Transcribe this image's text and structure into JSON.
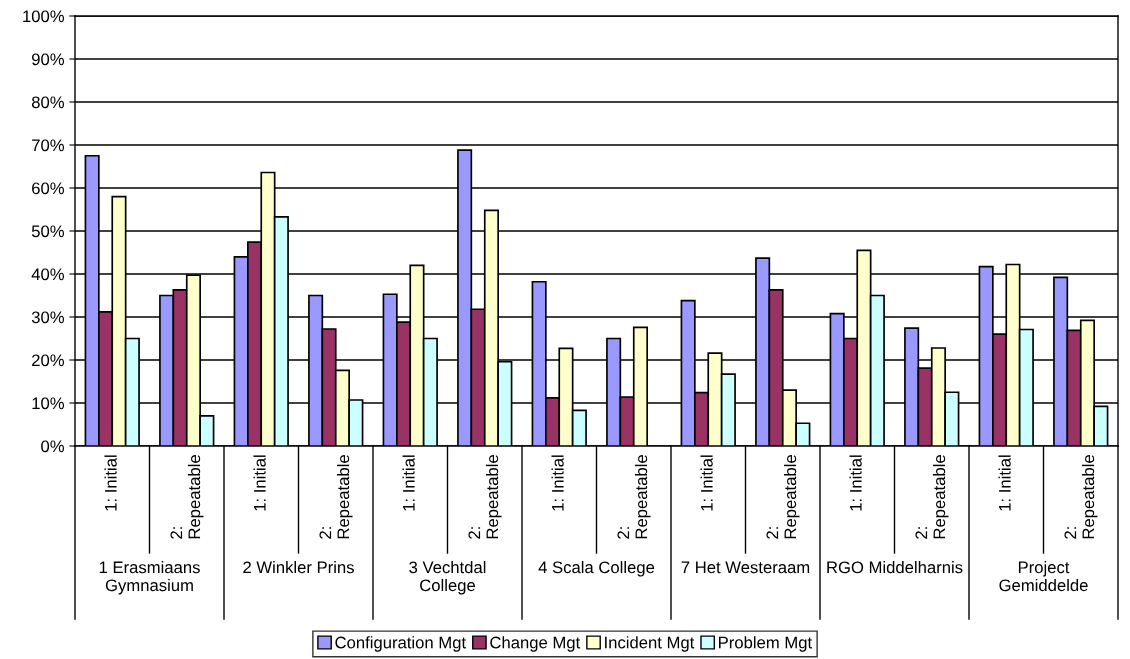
{
  "chart_data": {
    "type": "bar",
    "categories": [
      "1: Initial",
      "2: Repeatable",
      "1: Initial",
      "2: Repeatable",
      "1: Initial",
      "2: Repeatable",
      "1: Initial",
      "2: Repeatable",
      "1: Initial",
      "2: Repeatable",
      "1: Initial",
      "2: Repeatable",
      "1: Initial",
      "2: Repeatable"
    ],
    "annotations": [
      "1 Erasmiaans Gymnasium",
      "2 Winkler Prins",
      "3 Vechtdal College",
      "4 Scala College",
      "7 Het Westeraam",
      "RGO Middelharnis",
      "Project Gemiddelde"
    ],
    "series": [
      {
        "name": "Configuration Mgt",
        "color": "#9999ff",
        "values": [
          67.5,
          35,
          44,
          35,
          35.3,
          68.8,
          38.2,
          25,
          33.8,
          43.7,
          30.8,
          27.4,
          41.7,
          39.2
        ]
      },
      {
        "name": "Change Mgt",
        "color": "#993366",
        "values": [
          31.2,
          36.3,
          47.4,
          27.2,
          28.8,
          31.8,
          11.2,
          11.4,
          12.4,
          36.3,
          25,
          18.1,
          26,
          26.9
        ]
      },
      {
        "name": "Incident Mgt",
        "color": "#ffffcc",
        "values": [
          58,
          39.7,
          63.6,
          17.6,
          42,
          54.8,
          22.7,
          27.6,
          21.6,
          13,
          45.5,
          22.8,
          42.2,
          29.2
        ]
      },
      {
        "name": "Problem Mgt",
        "color": "#ccffff",
        "values": [
          25,
          7,
          53.3,
          10.7,
          25,
          19.6,
          8.3,
          null,
          16.7,
          5.3,
          35,
          12.5,
          27.1,
          9.2
        ]
      }
    ],
    "ylim": [
      0,
      100
    ],
    "yticks": [
      {
        "value": 0,
        "label": "0%"
      },
      {
        "value": 10,
        "label": "10%"
      },
      {
        "value": 20,
        "label": "20%"
      },
      {
        "value": 30,
        "label": "30%"
      },
      {
        "value": 40,
        "label": "40%"
      },
      {
        "value": 50,
        "label": "50%"
      },
      {
        "value": 60,
        "label": "60%"
      },
      {
        "value": 70,
        "label": "70%"
      },
      {
        "value": 80,
        "label": "80%"
      },
      {
        "value": 90,
        "label": "90%"
      },
      {
        "value": 100,
        "label": "100%"
      }
    ],
    "grid": "y",
    "legend": "bottom"
  }
}
